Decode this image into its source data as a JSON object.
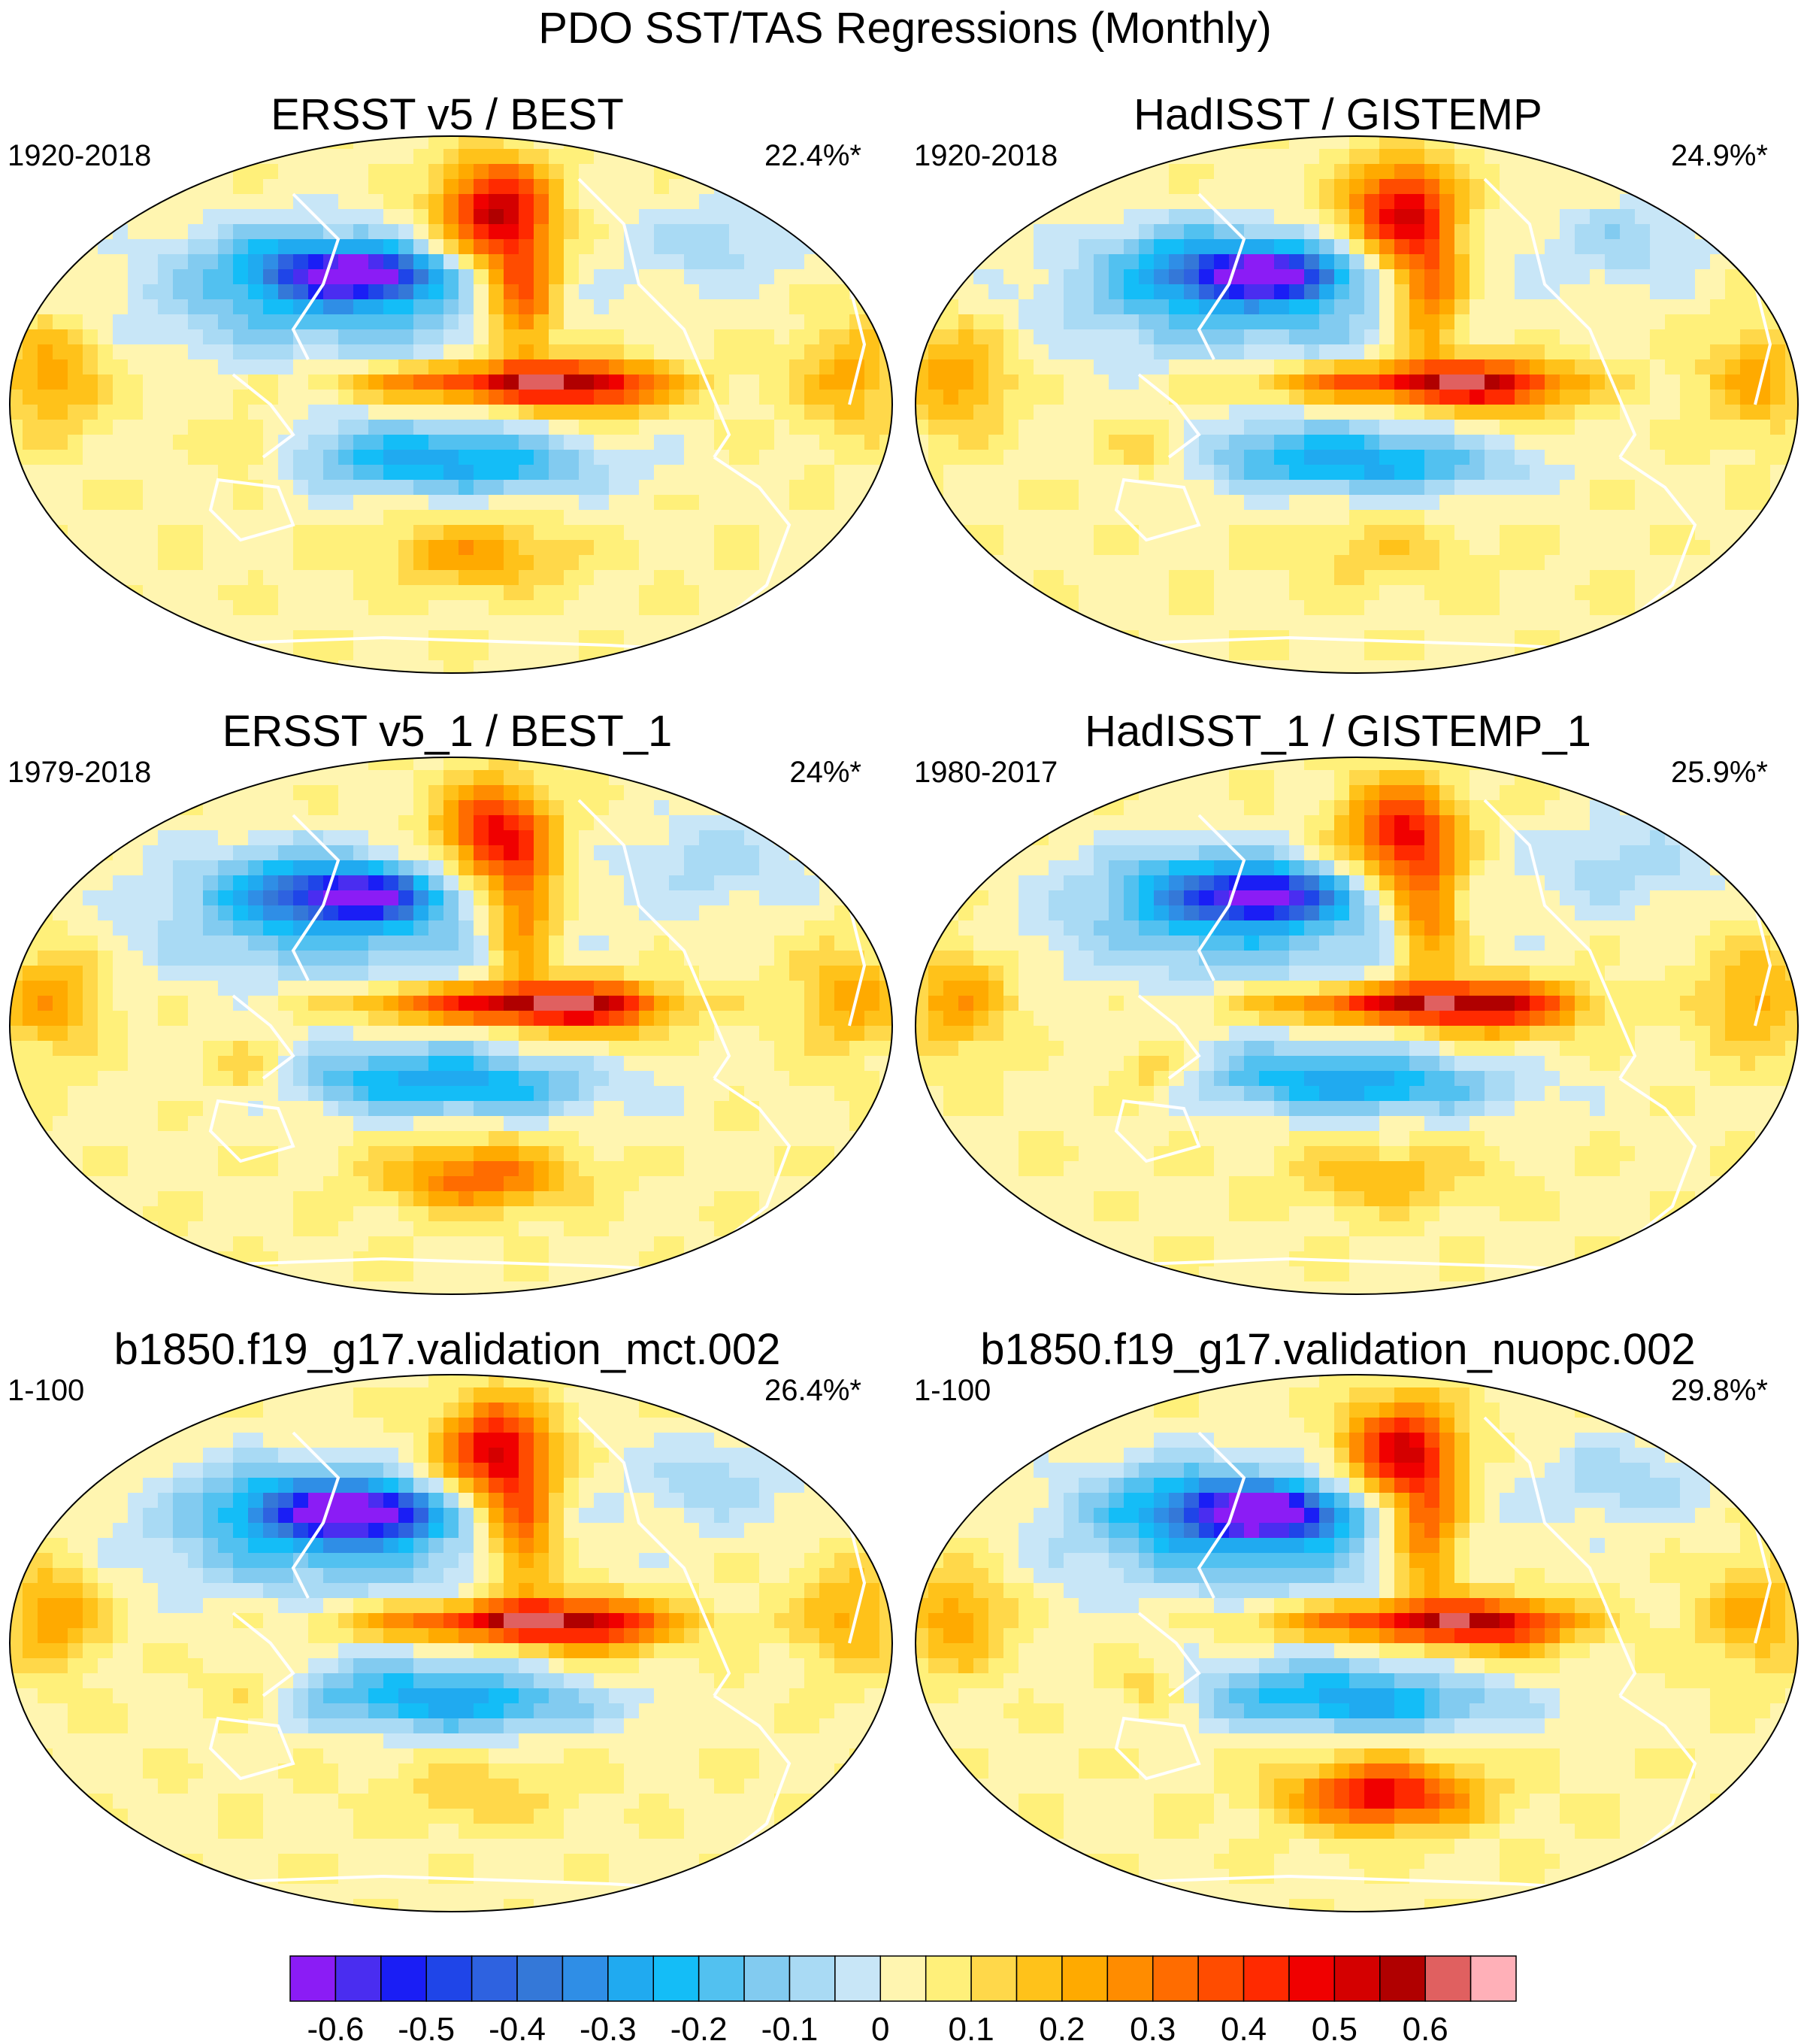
{
  "main_title": "PDO SST/TAS Regressions (Monthly)",
  "chart_data": {
    "type": "heatmap",
    "title": "PDO SST/TAS Regressions (Monthly)",
    "projection": "Robinson (global)",
    "panels": [
      {
        "title": "ERSST v5 / BEST",
        "period": "1920-2018",
        "variance_explained": "22.4%*",
        "features": {
          "north_pacific_cold_core": -0.55,
          "tropical_pacific_warm_tongue": 0.42,
          "alaska_warm": 0.65,
          "south_pacific_warm": 0.2
        }
      },
      {
        "title": "HadISST / GISTEMP",
        "period": "1920-2018",
        "variance_explained": "24.9%*",
        "features": {
          "north_pacific_cold_core": -0.55,
          "tropical_pacific_warm_tongue": 0.4,
          "alaska_warm": 0.6,
          "south_pacific_warm": 0.1
        }
      },
      {
        "title": "ERSST v5_1 / BEST_1",
        "period": "1979-2018",
        "variance_explained": "24%*",
        "features": {
          "north_pacific_cold_core": -0.5,
          "tropical_pacific_warm_tongue": 0.45,
          "alaska_warm": 0.55,
          "south_pacific_warm": 0.3
        }
      },
      {
        "title": "HadISST_1 / GISTEMP_1",
        "period": "1980-2017",
        "variance_explained": "25.9%*",
        "features": {
          "north_pacific_cold_core": -0.5,
          "tropical_pacific_warm_tongue": 0.45,
          "alaska_warm": 0.55,
          "south_pacific_warm": 0.15
        }
      },
      {
        "title": "b1850.f19_g17.validation_mct.002",
        "period": "1-100",
        "variance_explained": "26.4%*",
        "features": {
          "north_pacific_cold_core": -0.6,
          "tropical_pacific_warm_tongue": 0.45,
          "alaska_warm": 0.6,
          "south_pacific_warm": 0.1
        }
      },
      {
        "title": "b1850.f19_g17.validation_nuopc.002",
        "period": "1-100",
        "variance_explained": "29.8%*",
        "features": {
          "north_pacific_cold_core": -0.6,
          "tropical_pacific_warm_tongue": 0.4,
          "alaska_warm": 0.6,
          "south_pacific_warm": 0.45
        }
      }
    ],
    "colorbar": {
      "levels": [
        -0.65,
        -0.6,
        -0.55,
        -0.5,
        -0.45,
        -0.4,
        -0.35,
        -0.3,
        -0.25,
        -0.2,
        -0.15,
        -0.1,
        -0.05,
        0,
        0.05,
        0.1,
        0.15,
        0.2,
        0.25,
        0.3,
        0.35,
        0.4,
        0.45,
        0.5,
        0.55,
        0.6,
        0.65
      ],
      "tick_labels": [
        "-0.6",
        "-0.5",
        "-0.4",
        "-0.3",
        "-0.2",
        "-0.1",
        "0",
        "0.1",
        "0.2",
        "0.3",
        "0.4",
        "0.5",
        "0.6"
      ],
      "colors": [
        "#8b1cf5",
        "#4a2df0",
        "#1a1ef5",
        "#1f45e8",
        "#2e62e0",
        "#3478d8",
        "#2f8ee6",
        "#20aaf0",
        "#14bdf7",
        "#52c1f0",
        "#82cbf0",
        "#a9daf4",
        "#c8e6f7",
        "#fff5b0",
        "#fff07a",
        "#ffd84a",
        "#ffc21a",
        "#ffaa00",
        "#ff8c00",
        "#ff6c00",
        "#ff4c00",
        "#ff2a00",
        "#f00000",
        "#d40000",
        "#b00000",
        "#e06060",
        "#ffb0b8"
      ]
    }
  }
}
